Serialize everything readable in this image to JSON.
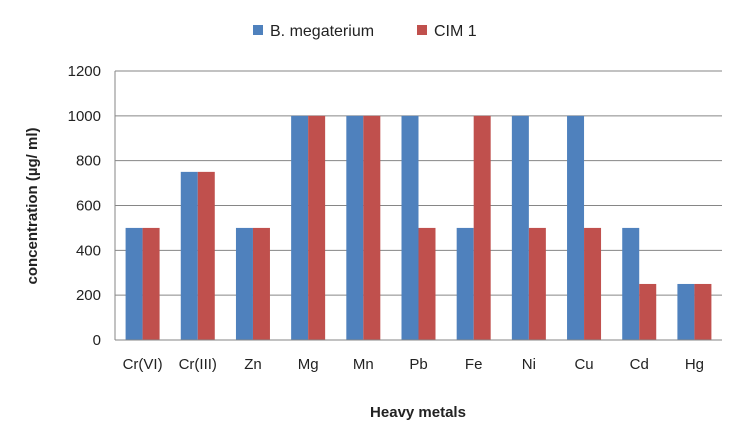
{
  "chart_data": {
    "type": "bar",
    "categories": [
      "Cr(VI)",
      "Cr(III)",
      "Zn",
      "Mg",
      "Mn",
      "Pb",
      "Fe",
      "Ni",
      "Cu",
      "Cd",
      "Hg"
    ],
    "series": [
      {
        "name": "B. megaterium",
        "color": "#4f81bd",
        "values": [
          500,
          750,
          500,
          1000,
          1000,
          1000,
          500,
          1000,
          1000,
          500,
          250
        ]
      },
      {
        "name": "CIM 1",
        "color": "#c0504d",
        "values": [
          500,
          750,
          500,
          1000,
          1000,
          500,
          1000,
          500,
          500,
          250,
          250
        ]
      }
    ],
    "xlabel": "Heavy metals",
    "ylabel": "concentration (µg/ ml)",
    "ylim": [
      0,
      1200
    ],
    "yticks": [
      0,
      200,
      400,
      600,
      800,
      1000,
      1200
    ],
    "grid": true,
    "legend_position": "top"
  }
}
